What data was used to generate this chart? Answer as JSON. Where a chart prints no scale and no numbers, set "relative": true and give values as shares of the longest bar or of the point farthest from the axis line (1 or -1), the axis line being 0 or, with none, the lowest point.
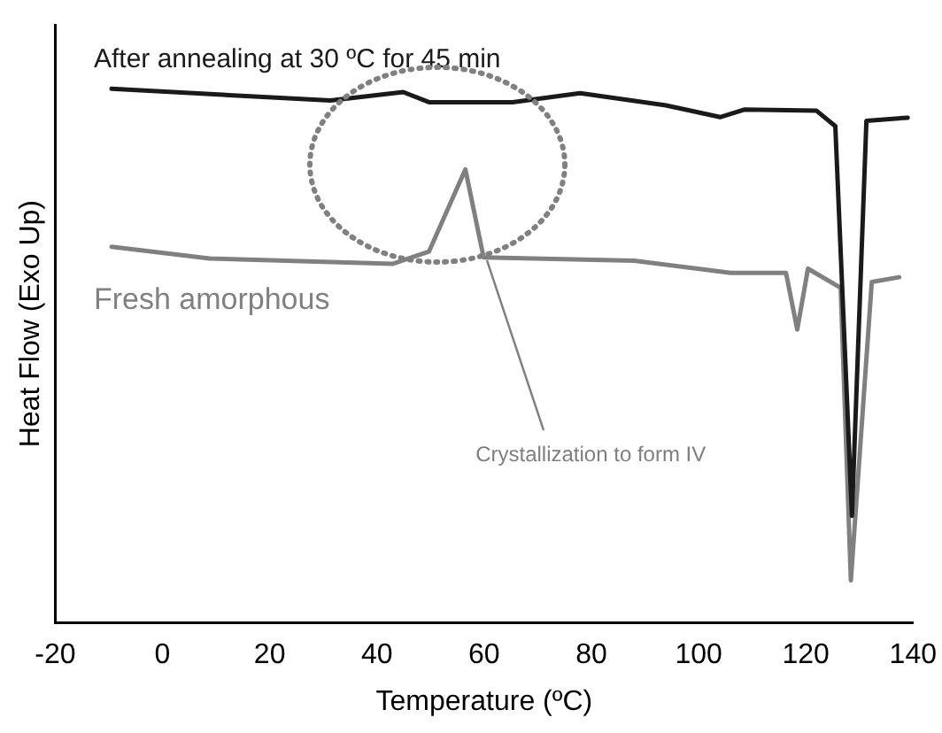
{
  "chart_data": {
    "type": "line",
    "relative": true,
    "xlabel": "Temperature (ºC)",
    "ylabel": "Heat Flow (Exo Up)",
    "xlim": [
      -20,
      140
    ],
    "xticks": [
      -20,
      0,
      20,
      40,
      60,
      80,
      100,
      120,
      140
    ],
    "grid": false,
    "legend": false,
    "marker": "none",
    "line_style": "solid",
    "annotations": [
      "Crystallization to form IV"
    ],
    "series": [
      {
        "name": "After annealing at 30 ºC for 45 min",
        "color": "#1a1a1a",
        "x": [
          -9.5,
          31.3,
          44.9,
          49.7,
          65.3,
          77.9,
          93.9,
          104,
          108.5,
          122,
          125.5,
          128.6,
          131.3,
          139
        ],
        "values": [
          1.0,
          0.978,
          0.994,
          0.975,
          0.975,
          0.992,
          0.969,
          0.947,
          0.961,
          0.959,
          0.93,
          0.2,
          0.94,
          0.946
        ]
      },
      {
        "name": "Fresh amorphous",
        "color": "#808080",
        "x": [
          -9.5,
          8.8,
          42.9,
          49.7,
          56.5,
          59.9,
          88,
          106,
          116.3,
          118.4,
          120.4,
          126.5,
          128.4,
          132.3,
          137.4
        ],
        "values": [
          0.704,
          0.682,
          0.672,
          0.695,
          0.849,
          0.684,
          0.678,
          0.655,
          0.655,
          0.549,
          0.663,
          0.627,
          0.079,
          0.638,
          0.647
        ]
      }
    ]
  }
}
